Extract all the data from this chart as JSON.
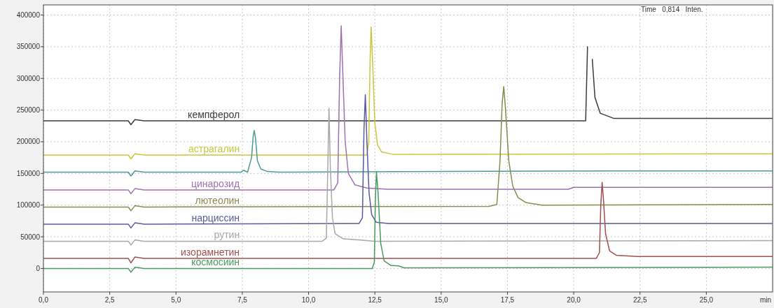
{
  "chart_data": {
    "type": "line",
    "xlabel": "min",
    "annotations": [
      "Time   0,814   Inten."
    ],
    "xlim": [
      0,
      27.5
    ],
    "ylim": [
      -37000,
      416000
    ],
    "xticks": [
      {
        "value": 0,
        "label": "0,0"
      },
      {
        "value": 2.5,
        "label": "2,5"
      },
      {
        "value": 5,
        "label": "5,0"
      },
      {
        "value": 7.5,
        "label": "7,5"
      },
      {
        "value": 10,
        "label": "10,0"
      },
      {
        "value": 12.5,
        "label": "12,5"
      },
      {
        "value": 15,
        "label": "15,0"
      },
      {
        "value": 17.5,
        "label": "17,5"
      },
      {
        "value": 20,
        "label": "20,0"
      },
      {
        "value": 22.5,
        "label": "22,5"
      },
      {
        "value": 25,
        "label": "25,0"
      }
    ],
    "yticks": [
      0,
      50000,
      100000,
      150000,
      200000,
      250000,
      300000,
      350000,
      400000
    ],
    "grid": true,
    "line_style": "solid",
    "marker": "none",
    "series": [
      {
        "name": "кемпферол",
        "color": "#3c3c3c",
        "x": [
          0,
          3.2,
          3.3,
          3.45,
          3.8,
          20.45,
          20.52,
          20.56,
          20.64,
          20.7,
          20.8,
          21.0,
          21.5,
          27.5
        ],
        "values": [
          233000,
          233000,
          227000,
          235000,
          233000,
          233000,
          350000,
          null,
          null,
          330000,
          270000,
          245000,
          237000,
          237000
        ]
      },
      {
        "name": "астрагалин",
        "color": "#c8c83c",
        "x": [
          0,
          3.2,
          3.3,
          3.45,
          3.8,
          12.2,
          12.27,
          12.32,
          12.36,
          12.42,
          12.5,
          12.6,
          12.75,
          13.2,
          27.5
        ],
        "values": [
          179000,
          179000,
          173000,
          181000,
          179000,
          179000,
          200000,
          330000,
          381000,
          320000,
          230000,
          195000,
          184000,
          180000,
          181000
        ]
      },
      {
        "color": "#4a9a9a",
        "x": [
          0,
          3.2,
          3.3,
          3.45,
          3.8,
          7.45,
          7.55,
          7.7,
          7.85,
          7.91,
          7.95,
          8.0,
          8.07,
          8.2,
          8.45,
          8.9,
          21.3,
          27.5
        ],
        "values": [
          152000,
          152000,
          146000,
          154000,
          152000,
          152000,
          155000,
          152000,
          175000,
          208000,
          218000,
          205000,
          170000,
          157000,
          153000,
          152000,
          154000,
          154000
        ]
      },
      {
        "name": "цинарозид",
        "color": "#a070b0",
        "x": [
          0,
          3.2,
          3.3,
          3.45,
          3.8,
          10.95,
          11.1,
          11.17,
          11.23,
          11.29,
          11.38,
          11.5,
          11.75,
          12.2,
          13.0,
          19.8,
          20.0,
          27.5
        ],
        "values": [
          124000,
          124000,
          118000,
          126000,
          124000,
          124000,
          135000,
          300000,
          383000,
          310000,
          200000,
          150000,
          132000,
          127000,
          125000,
          125000,
          128000,
          128000
        ]
      },
      {
        "name": "лютеолин",
        "color": "#8a8a50",
        "x": [
          0,
          3.2,
          3.3,
          3.45,
          3.8,
          16.8,
          17.1,
          17.22,
          17.3,
          17.36,
          17.43,
          17.55,
          17.7,
          17.9,
          18.2,
          18.8,
          27.5
        ],
        "values": [
          97000,
          97000,
          91000,
          99000,
          97000,
          98000,
          101000,
          170000,
          260000,
          287000,
          250000,
          170000,
          130000,
          112000,
          104000,
          100000,
          101000
        ]
      },
      {
        "name": "нарциссин",
        "color": "#5a5aa0",
        "x": [
          0,
          3.2,
          3.3,
          3.45,
          3.8,
          11.9,
          12.03,
          12.09,
          12.14,
          12.2,
          12.28,
          12.38,
          12.55,
          13.0,
          27.5
        ],
        "values": [
          70000,
          70000,
          64000,
          72000,
          70000,
          71000,
          80000,
          220000,
          274000,
          200000,
          120000,
          85000,
          73000,
          71000,
          71000
        ]
      },
      {
        "name": "рутин",
        "color": "#a8a8a8",
        "x": [
          0,
          3.2,
          3.3,
          3.45,
          3.8,
          10.52,
          10.67,
          10.72,
          10.77,
          10.82,
          10.9,
          11.0,
          11.3,
          11.9,
          12.5,
          27.5
        ],
        "values": [
          43000,
          43000,
          37000,
          45000,
          43000,
          43000,
          48000,
          150000,
          253000,
          160000,
          80000,
          55000,
          47000,
          45000,
          43000,
          44000
        ]
      },
      {
        "name": "изорамнетин",
        "color": "#a05050",
        "x": [
          0,
          3.2,
          3.3,
          3.45,
          3.8,
          20.85,
          20.97,
          21.02,
          21.07,
          21.12,
          21.2,
          21.35,
          21.6,
          22.4,
          27.5
        ],
        "values": [
          16000,
          16000,
          9000,
          18000,
          16000,
          16000,
          25000,
          100000,
          136000,
          110000,
          55000,
          28000,
          21000,
          19000,
          19000
        ]
      },
      {
        "name": "космосиин",
        "color": "#4a9a60",
        "x": [
          0,
          3.2,
          3.3,
          3.45,
          3.8,
          12.4,
          12.48,
          12.52,
          12.56,
          12.62,
          12.72,
          12.85,
          13.1,
          13.4,
          13.6,
          27.5
        ],
        "values": [
          0,
          0,
          -6000,
          2000,
          0,
          0,
          10000,
          110000,
          152000,
          120000,
          40000,
          12000,
          5000,
          4000,
          1000,
          2000
        ]
      }
    ]
  }
}
